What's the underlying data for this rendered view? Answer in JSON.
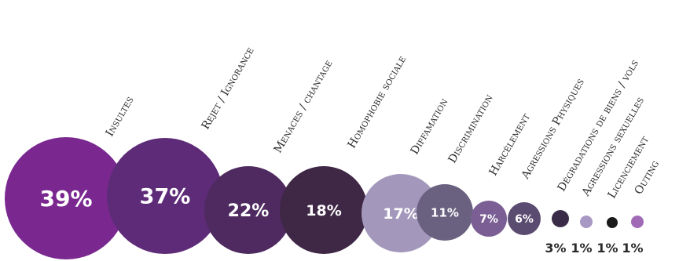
{
  "chart_data": {
    "type": "bubble",
    "title": "",
    "categories": [
      "Insultes",
      "Rejet / Ignorance",
      "Menaces / chantage",
      "Homophobie sociale",
      "Diffamation",
      "Discrimination",
      "Harcèlement",
      "Agressions Physiques",
      "Dégradations de biens / vols",
      "Agressions sexuelles",
      "Licenciement",
      "Outing"
    ],
    "values": [
      39,
      37,
      22,
      18,
      17,
      11,
      7,
      6,
      3,
      1,
      1,
      1
    ],
    "value_labels": [
      "39%",
      "37%",
      "22%",
      "18%",
      "17%",
      "11%",
      "7%",
      "6%",
      "3%",
      "1%",
      "1%",
      "1%"
    ],
    "colors": [
      "#7a2890",
      "#5d2b77",
      "#4f2a60",
      "#3f2746",
      "#a398bb",
      "#6a6180",
      "#7b5f94",
      "#5a4b70",
      "#3a2c48",
      "#a898c4",
      "#1a1a1a",
      "#a06ab7"
    ]
  }
}
